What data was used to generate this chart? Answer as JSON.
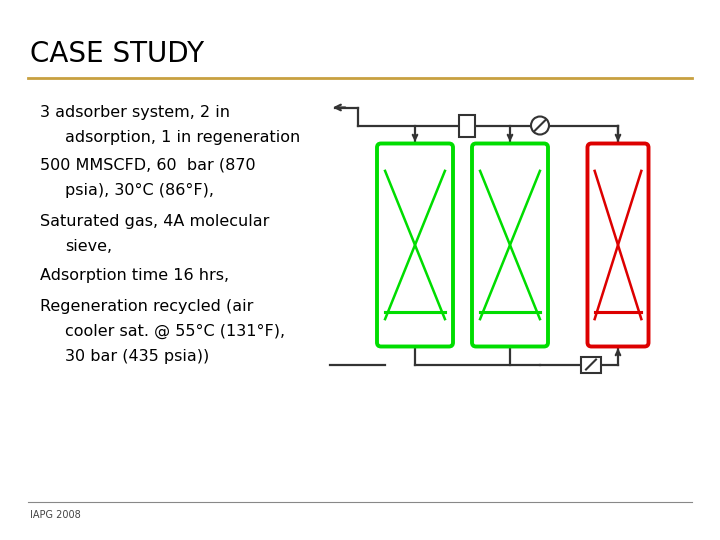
{
  "title": "CASE STUDY",
  "title_color": "#000000",
  "title_fontsize": 20,
  "separator_color": "#C8A040",
  "bg_color": "#FFFFFF",
  "footer_text": "IAPG 2008",
  "bullet_points": [
    {
      "first_line": "3 adsorber system, 2 in",
      "second_line": "   adsorption, 1 in regeneration"
    },
    {
      "first_line": "500 MMSCFD, 60  bar (870",
      "second_line": "   psia), 30°C (86°F),"
    },
    {
      "first_line": "Saturated gas, 4A molecular",
      "second_line": "   sieve,"
    },
    {
      "first_line": "Adsorption time 16 hrs,"
    },
    {
      "first_line": "Regeneration recycled (air",
      "second_line": "   cooler sat. @ 55°C (131°F),",
      "third_line": "   30 bar (435 psia))"
    }
  ],
  "vessel_green_color": "#00DD00",
  "vessel_red_color": "#DD0000",
  "pipe_color": "#333333",
  "text_fontsize": 11.5
}
